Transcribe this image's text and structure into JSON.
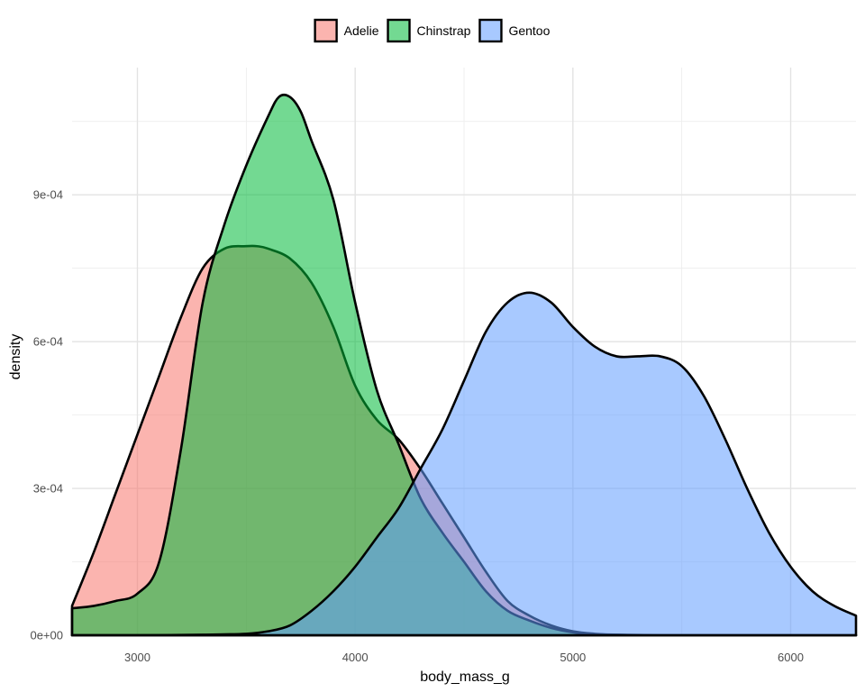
{
  "chart_data": {
    "type": "area",
    "xlabel": "body_mass_g",
    "ylabel": "density",
    "xlim": [
      2700,
      6300
    ],
    "ylim": [
      0,
      0.00116
    ],
    "x_ticks": [
      3000,
      4000,
      5000,
      6000
    ],
    "x_tick_labels": [
      "3000",
      "4000",
      "5000",
      "6000"
    ],
    "y_ticks": [
      0,
      0.0003,
      0.0006,
      0.0009
    ],
    "y_tick_labels": [
      "0e+00",
      "3e-04",
      "6e-04",
      "9e-04"
    ],
    "grid": true,
    "legend_position": "top",
    "series": [
      {
        "name": "Adelie",
        "color": "#F8766D",
        "x": [
          2700,
          2800,
          2900,
          3000,
          3100,
          3200,
          3300,
          3400,
          3500,
          3550,
          3600,
          3700,
          3800,
          3900,
          4000,
          4100,
          4200,
          4300,
          4400,
          4500,
          4600,
          4700,
          4800,
          4900,
          5000,
          5100,
          5200,
          5300,
          5400,
          5600,
          5800,
          6000,
          6300
        ],
        "values": [
          6e-05,
          0.00017,
          0.00029,
          0.00041,
          0.00053,
          0.00065,
          0.00075,
          0.00079,
          0.000795,
          0.000795,
          0.00079,
          0.00077,
          0.00072,
          0.00063,
          0.00051,
          0.00044,
          0.0004,
          0.00034,
          0.00027,
          0.0002,
          0.00013,
          7e-05,
          4e-05,
          2e-05,
          8e-06,
          3e-06,
          1e-06,
          0,
          0,
          0,
          0,
          0,
          0
        ]
      },
      {
        "name": "Chinstrap",
        "color": "#00BA38",
        "x": [
          2700,
          2800,
          2900,
          3000,
          3100,
          3200,
          3300,
          3400,
          3500,
          3600,
          3650,
          3700,
          3750,
          3800,
          3900,
          4000,
          4100,
          4200,
          4300,
          4400,
          4500,
          4600,
          4700,
          4800,
          4900,
          5000,
          5100,
          5200,
          5400,
          5600,
          5800,
          6000,
          6300
        ],
        "values": [
          5.5e-05,
          6e-05,
          7e-05,
          8.5e-05,
          0.00015,
          0.00038,
          0.00068,
          0.00084,
          0.00096,
          0.00106,
          0.0011,
          0.0011,
          0.00107,
          0.00101,
          0.00089,
          0.00068,
          0.0005,
          0.00039,
          0.00028,
          0.00021,
          0.00015,
          9e-05,
          5e-05,
          3e-05,
          1.5e-05,
          6e-06,
          2e-06,
          1e-06,
          0,
          0,
          0,
          0,
          0
        ]
      },
      {
        "name": "Gentoo",
        "color": "#619CFF",
        "x": [
          2700,
          3000,
          3300,
          3500,
          3600,
          3700,
          3800,
          3900,
          4000,
          4100,
          4200,
          4300,
          4400,
          4500,
          4600,
          4700,
          4800,
          4900,
          5000,
          5100,
          5200,
          5300,
          5400,
          5500,
          5600,
          5700,
          5800,
          5900,
          6000,
          6100,
          6200,
          6300
        ],
        "values": [
          0,
          0,
          1e-06,
          3e-06,
          8e-06,
          2e-05,
          5e-05,
          9e-05,
          0.00014,
          0.0002,
          0.00026,
          0.00034,
          0.00042,
          0.00052,
          0.00062,
          0.00068,
          0.0007,
          0.00068,
          0.00063,
          0.00059,
          0.00057,
          0.00057,
          0.00057,
          0.00055,
          0.00049,
          0.0004,
          0.0003,
          0.00021,
          0.00014,
          9e-05,
          6e-05,
          4e-05
        ]
      }
    ]
  }
}
